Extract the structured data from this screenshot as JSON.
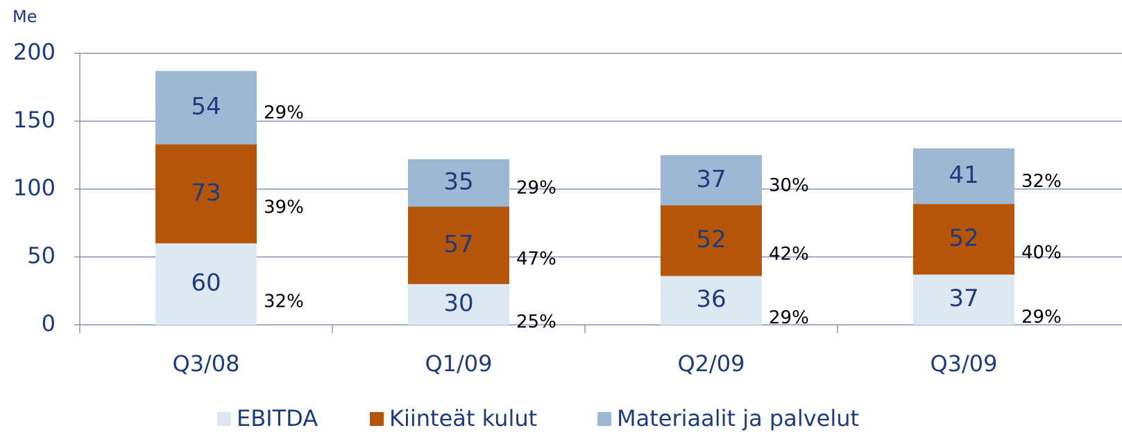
{
  "chart_data": {
    "type": "stacked_bar",
    "y_label": "Me",
    "categories": [
      "Q3/08",
      "Q1/09",
      "Q2/09",
      "Q3/09"
    ],
    "series": [
      {
        "name": "EBITDA",
        "color": "#dde8f3",
        "values": [
          60,
          30,
          36,
          37
        ],
        "share_labels": [
          "32%",
          "25%",
          "29%",
          "29%"
        ]
      },
      {
        "name": "Kiinteät kulut",
        "color": "#b5550a",
        "values": [
          73,
          57,
          52,
          52
        ],
        "share_labels": [
          "39%",
          "47%",
          "42%",
          "40%"
        ]
      },
      {
        "name": "Materiaalit ja palvelut",
        "color": "#9db7d5",
        "values": [
          54,
          35,
          37,
          41
        ],
        "share_labels": [
          "29%",
          "29%",
          "30%",
          "32%"
        ]
      }
    ],
    "ylim": [
      0,
      200
    ],
    "yticks": [
      0,
      50,
      100,
      150,
      200
    ],
    "grid": true
  }
}
